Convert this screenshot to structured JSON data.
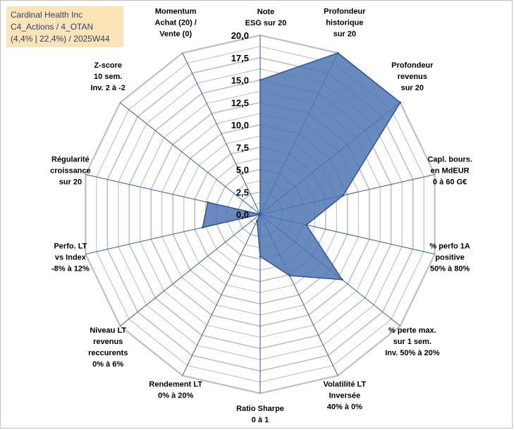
{
  "header": {
    "lines": [
      "Cardinal Health Inc",
      "C4_Actions / 4_OTAN",
      "(4,4% | 22,4%) / 2025W44"
    ]
  },
  "colors": {
    "fill": "#4e75b3",
    "stroke": "#2f5597",
    "grid": "#bfbfbf",
    "spoke": "#2e5ea8",
    "title_bg": "#fbe5b6"
  },
  "chart_data": {
    "type": "radar",
    "title": "Cardinal Health Inc",
    "rlim": [
      0,
      20
    ],
    "grid_step": 1.25,
    "ticks": [
      "0,0",
      "2,5",
      "5,0",
      "7,5",
      "10,0",
      "12,5",
      "15,0",
      "17,5",
      "20,0"
    ],
    "tick_values": [
      0,
      2.5,
      5,
      7.5,
      10,
      12.5,
      15,
      17.5,
      20
    ],
    "axes": [
      {
        "name": "Note ESG sur 20",
        "lines": [
          "Note",
          "ESG sur 20"
        ],
        "value": 15.0
      },
      {
        "name": "Profondeur historique sur 20",
        "lines": [
          "Profondeur",
          "historique",
          "sur 20"
        ],
        "value": 20.0
      },
      {
        "name": "Profondeur revenus sur 20",
        "lines": [
          "Profondeur",
          "revenus",
          "sur 20"
        ],
        "value": 20.0
      },
      {
        "name": "Capl. bours. en MdEUR 0 à 60 G€",
        "lines": [
          "Capl. bours.",
          "en MdEUR",
          "0 à 60 G€"
        ],
        "value": 9.5
      },
      {
        "name": "% perfo 1A positive 50% à 80%",
        "lines": [
          "% perfo 1A",
          "positive",
          "50% à 80%"
        ],
        "value": 5.3
      },
      {
        "name": "% perte max. sur 1 sem. Inv. 50% à 20%",
        "lines": [
          "% perte max.",
          "sur 1 sem.",
          "Inv. 50% à 20%"
        ],
        "value": 11.7
      },
      {
        "name": "Volatilité LT Inversée 40% à 0%",
        "lines": [
          "Volatilité LT",
          "Inversée",
          "40% à 0%"
        ],
        "value": 7.6
      },
      {
        "name": "Ratio Sharpe 0 à 1",
        "lines": [
          "Ratio Sharpe",
          "0 à 1"
        ],
        "value": 4.7
      },
      {
        "name": "Rendement LT 0% à 20%",
        "lines": [
          "Rendement LT",
          "0% à 20%"
        ],
        "value": 0.8
      },
      {
        "name": "Niveau LT revenus reccurents 0% à 6%",
        "lines": [
          "Niveau LT",
          "revenus",
          "reccurents",
          "0% à 6%"
        ],
        "value": 0.0
      },
      {
        "name": "Perfo. LT vs Index -8% à 12%",
        "lines": [
          "Perfo. LT",
          "vs Index",
          "-8% à 12%"
        ],
        "value": 6.6
      },
      {
        "name": "Régularité croissance sur 20",
        "lines": [
          "Régularité",
          "croissance",
          "sur 20"
        ],
        "value": 6.0
      },
      {
        "name": "Z-score 10 sem. Inv. 2 à -2",
        "lines": [
          "Z-score",
          "10 sem.",
          "Inv. 2 à -2"
        ],
        "value": 0.0
      },
      {
        "name": "Momentum Achat (20) / Vente (0)",
        "lines": [
          "Momentum",
          "Achat (20) /",
          "Vente (0)"
        ],
        "value": 0.0
      }
    ]
  }
}
